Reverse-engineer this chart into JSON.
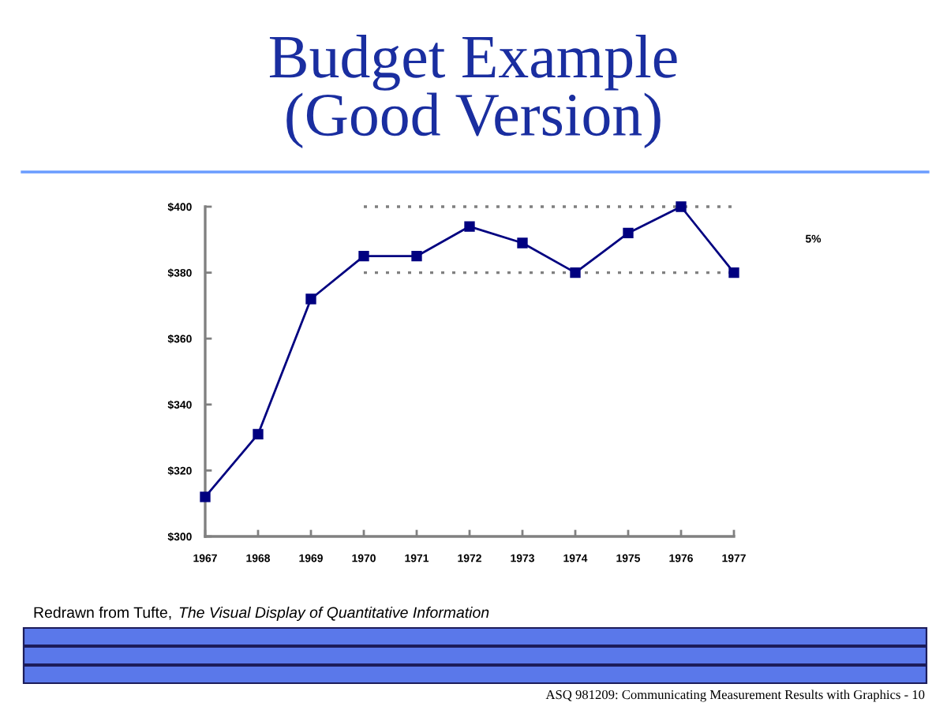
{
  "chart_data": {
    "type": "line",
    "title": "Budget Example\n(Good Version)",
    "x": [
      1967,
      1968,
      1969,
      1970,
      1971,
      1972,
      1973,
      1974,
      1975,
      1976,
      1977
    ],
    "series": [
      {
        "color": "#000080",
        "values": [
          312,
          331,
          372,
          385,
          385,
          394,
          389,
          380,
          392,
          400,
          380
        ],
        "marker": "square",
        "line_style": "solid"
      },
      {
        "type": "line",
        "values": [
          null,
          null,
          null,
          400,
          400,
          400,
          400,
          400,
          400,
          400,
          400
        ],
        "color": "#808080",
        "line_style": "dotted",
        "marker": "none"
      },
      {
        "type": "line",
        "values": [
          null,
          null,
          null,
          380,
          380,
          380,
          380,
          380,
          380,
          380,
          380
        ],
        "color": "#808080",
        "line_style": "dotted",
        "marker": "none"
      }
    ],
    "xlim": [
      1967,
      1977
    ],
    "xticks": [
      1967,
      1968,
      1969,
      1970,
      1971,
      1972,
      1973,
      1974,
      1975,
      1976,
      1977
    ],
    "ylim": [
      300,
      400
    ],
    "yticks": [
      {
        "value": 300,
        "label": "$300"
      },
      {
        "value": 320,
        "label": "$320"
      },
      {
        "value": 340,
        "label": "$340"
      },
      {
        "value": 360,
        "label": "$360"
      },
      {
        "value": 380,
        "label": "$380"
      },
      {
        "value": 400,
        "label": "$400"
      }
    ],
    "annotations": [
      "5%",
      "Redrawn from Tufte,",
      "The Visual Display of Quantitative Information",
      "ASQ 981209: Communicating Measurement Results with Graphics - 10"
    ],
    "grid": false
  }
}
